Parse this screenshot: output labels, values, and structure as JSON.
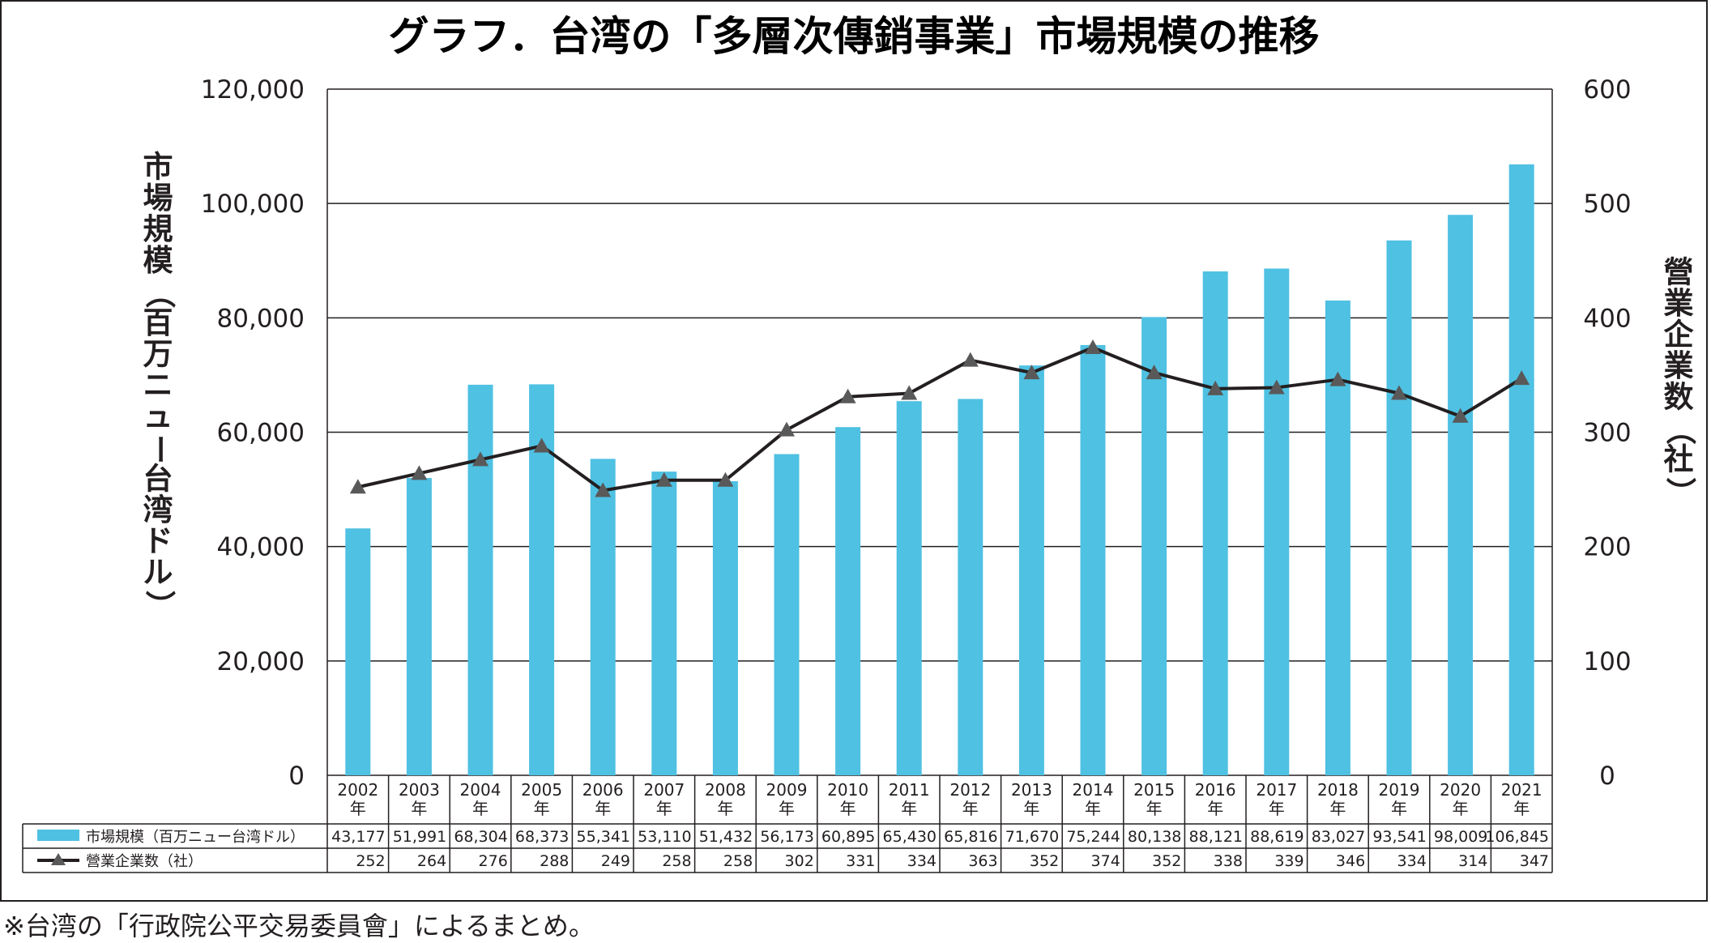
{
  "chart_data": {
    "type": "bar",
    "title": "グラフ．台湾の「多層次傳銷事業」市場規模の推移",
    "categories": [
      "2002\n年",
      "2003\n年",
      "2004\n年",
      "2005\n年",
      "2006\n年",
      "2007\n年",
      "2008\n年",
      "2009\n年",
      "2010\n年",
      "2011\n年",
      "2012\n年",
      "2013\n年",
      "2014\n年",
      "2015\n年",
      "2016\n年",
      "2017\n年",
      "2018\n年",
      "2019\n年",
      "2020\n年",
      "2021\n年"
    ],
    "series": [
      {
        "name": "市場規模（百万ニュー台湾ドル）",
        "type": "bar",
        "axis": "left",
        "color": "#4fc1e2",
        "values": [
          43177,
          51991,
          68304,
          68373,
          55341,
          53110,
          51432,
          56173,
          60895,
          65430,
          65816,
          71670,
          75244,
          80138,
          88121,
          88619,
          83027,
          93541,
          98009,
          106845
        ],
        "labels": [
          "43,177",
          "51,991",
          "68,304",
          "68,373",
          "55,341",
          "53,110",
          "51,432",
          "56,173",
          "60,895",
          "65,430",
          "65,816",
          "71,670",
          "75,244",
          "80,138",
          "88,121",
          "88,619",
          "83,027",
          "93,541",
          "98,009",
          "106,845"
        ]
      },
      {
        "name": "營業企業数（社）",
        "type": "line",
        "axis": "right",
        "color": "#231f20",
        "marker_color": "#595959",
        "values": [
          252,
          264,
          276,
          288,
          249,
          258,
          258,
          302,
          331,
          334,
          363,
          352,
          374,
          352,
          338,
          339,
          346,
          334,
          314,
          347
        ],
        "labels": [
          "252",
          "264",
          "276",
          "288",
          "249",
          "258",
          "258",
          "302",
          "331",
          "334",
          "363",
          "352",
          "374",
          "352",
          "338",
          "339",
          "346",
          "334",
          "314",
          "347"
        ]
      }
    ],
    "ylabel": "市場規模（百万ニュー台湾ドル）",
    "y2label": "營業企業数（社）",
    "ylim": [
      0,
      120000
    ],
    "y2lim": [
      0,
      600
    ],
    "yticks": [
      "0",
      "20,000",
      "40,000",
      "60,000",
      "80,000",
      "100,000",
      "120,000"
    ],
    "y2ticks": [
      "0",
      "100",
      "200",
      "300",
      "400",
      "500",
      "600"
    ],
    "grid": true,
    "legend": "data-table-below"
  },
  "footnote": "※台湾の「行政院公平交易委員會」によるまとめ。"
}
